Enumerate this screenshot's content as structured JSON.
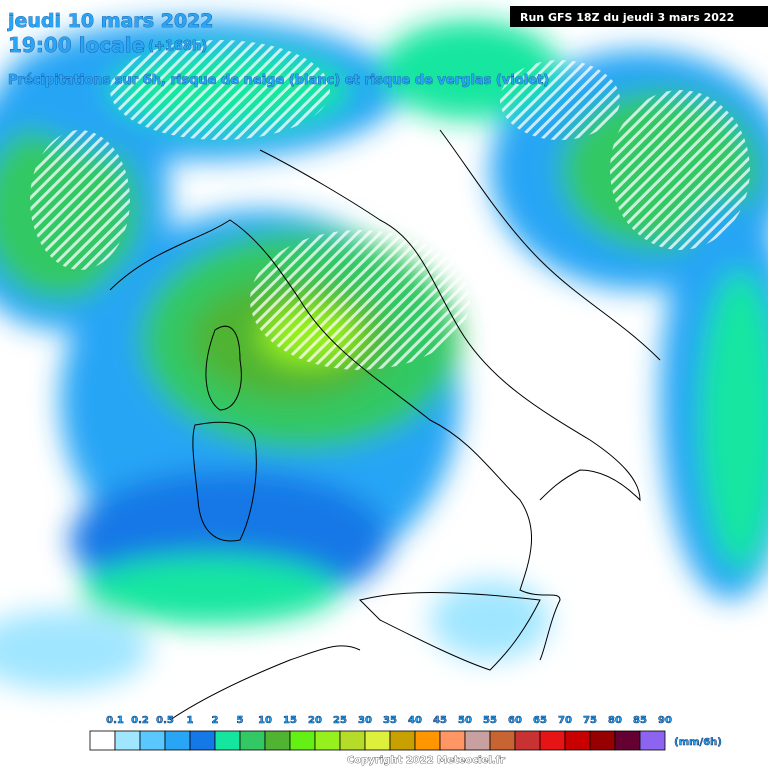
{
  "header": {
    "date": "jeudi 10 mars 2022",
    "time": "19:00 locale",
    "lead": "(+168h)",
    "subtitle": "Précipitations sur 6h, risque de neige (blanc) et risque de verglas (violet)",
    "run": "Run GFS 18Z du jeudi 3 mars 2022"
  },
  "legend": {
    "labels": [
      0.1,
      0.2,
      0.5,
      1,
      2,
      5,
      10,
      15,
      20,
      25,
      30,
      35,
      40,
      45,
      50,
      55,
      60,
      65,
      70,
      75,
      80,
      85,
      90
    ],
    "colors": [
      "#ffffff",
      "#a0e6ff",
      "#5ac8ff",
      "#28a5f5",
      "#1478e6",
      "#14e6a0",
      "#32c864",
      "#50b432",
      "#64f014",
      "#96f01e",
      "#b4dc28",
      "#dcf03c",
      "#c8a000",
      "#ff9600",
      "#ff9664",
      "#c8a0a0",
      "#c86432",
      "#c83232",
      "#e61414",
      "#c80000",
      "#960000",
      "#640032",
      "#8c64f0"
    ],
    "last_color": "#f050f0",
    "unit": "(mm/6h)"
  },
  "footer": {
    "copyright": "Copyright 2022 Meteociel.fr"
  }
}
